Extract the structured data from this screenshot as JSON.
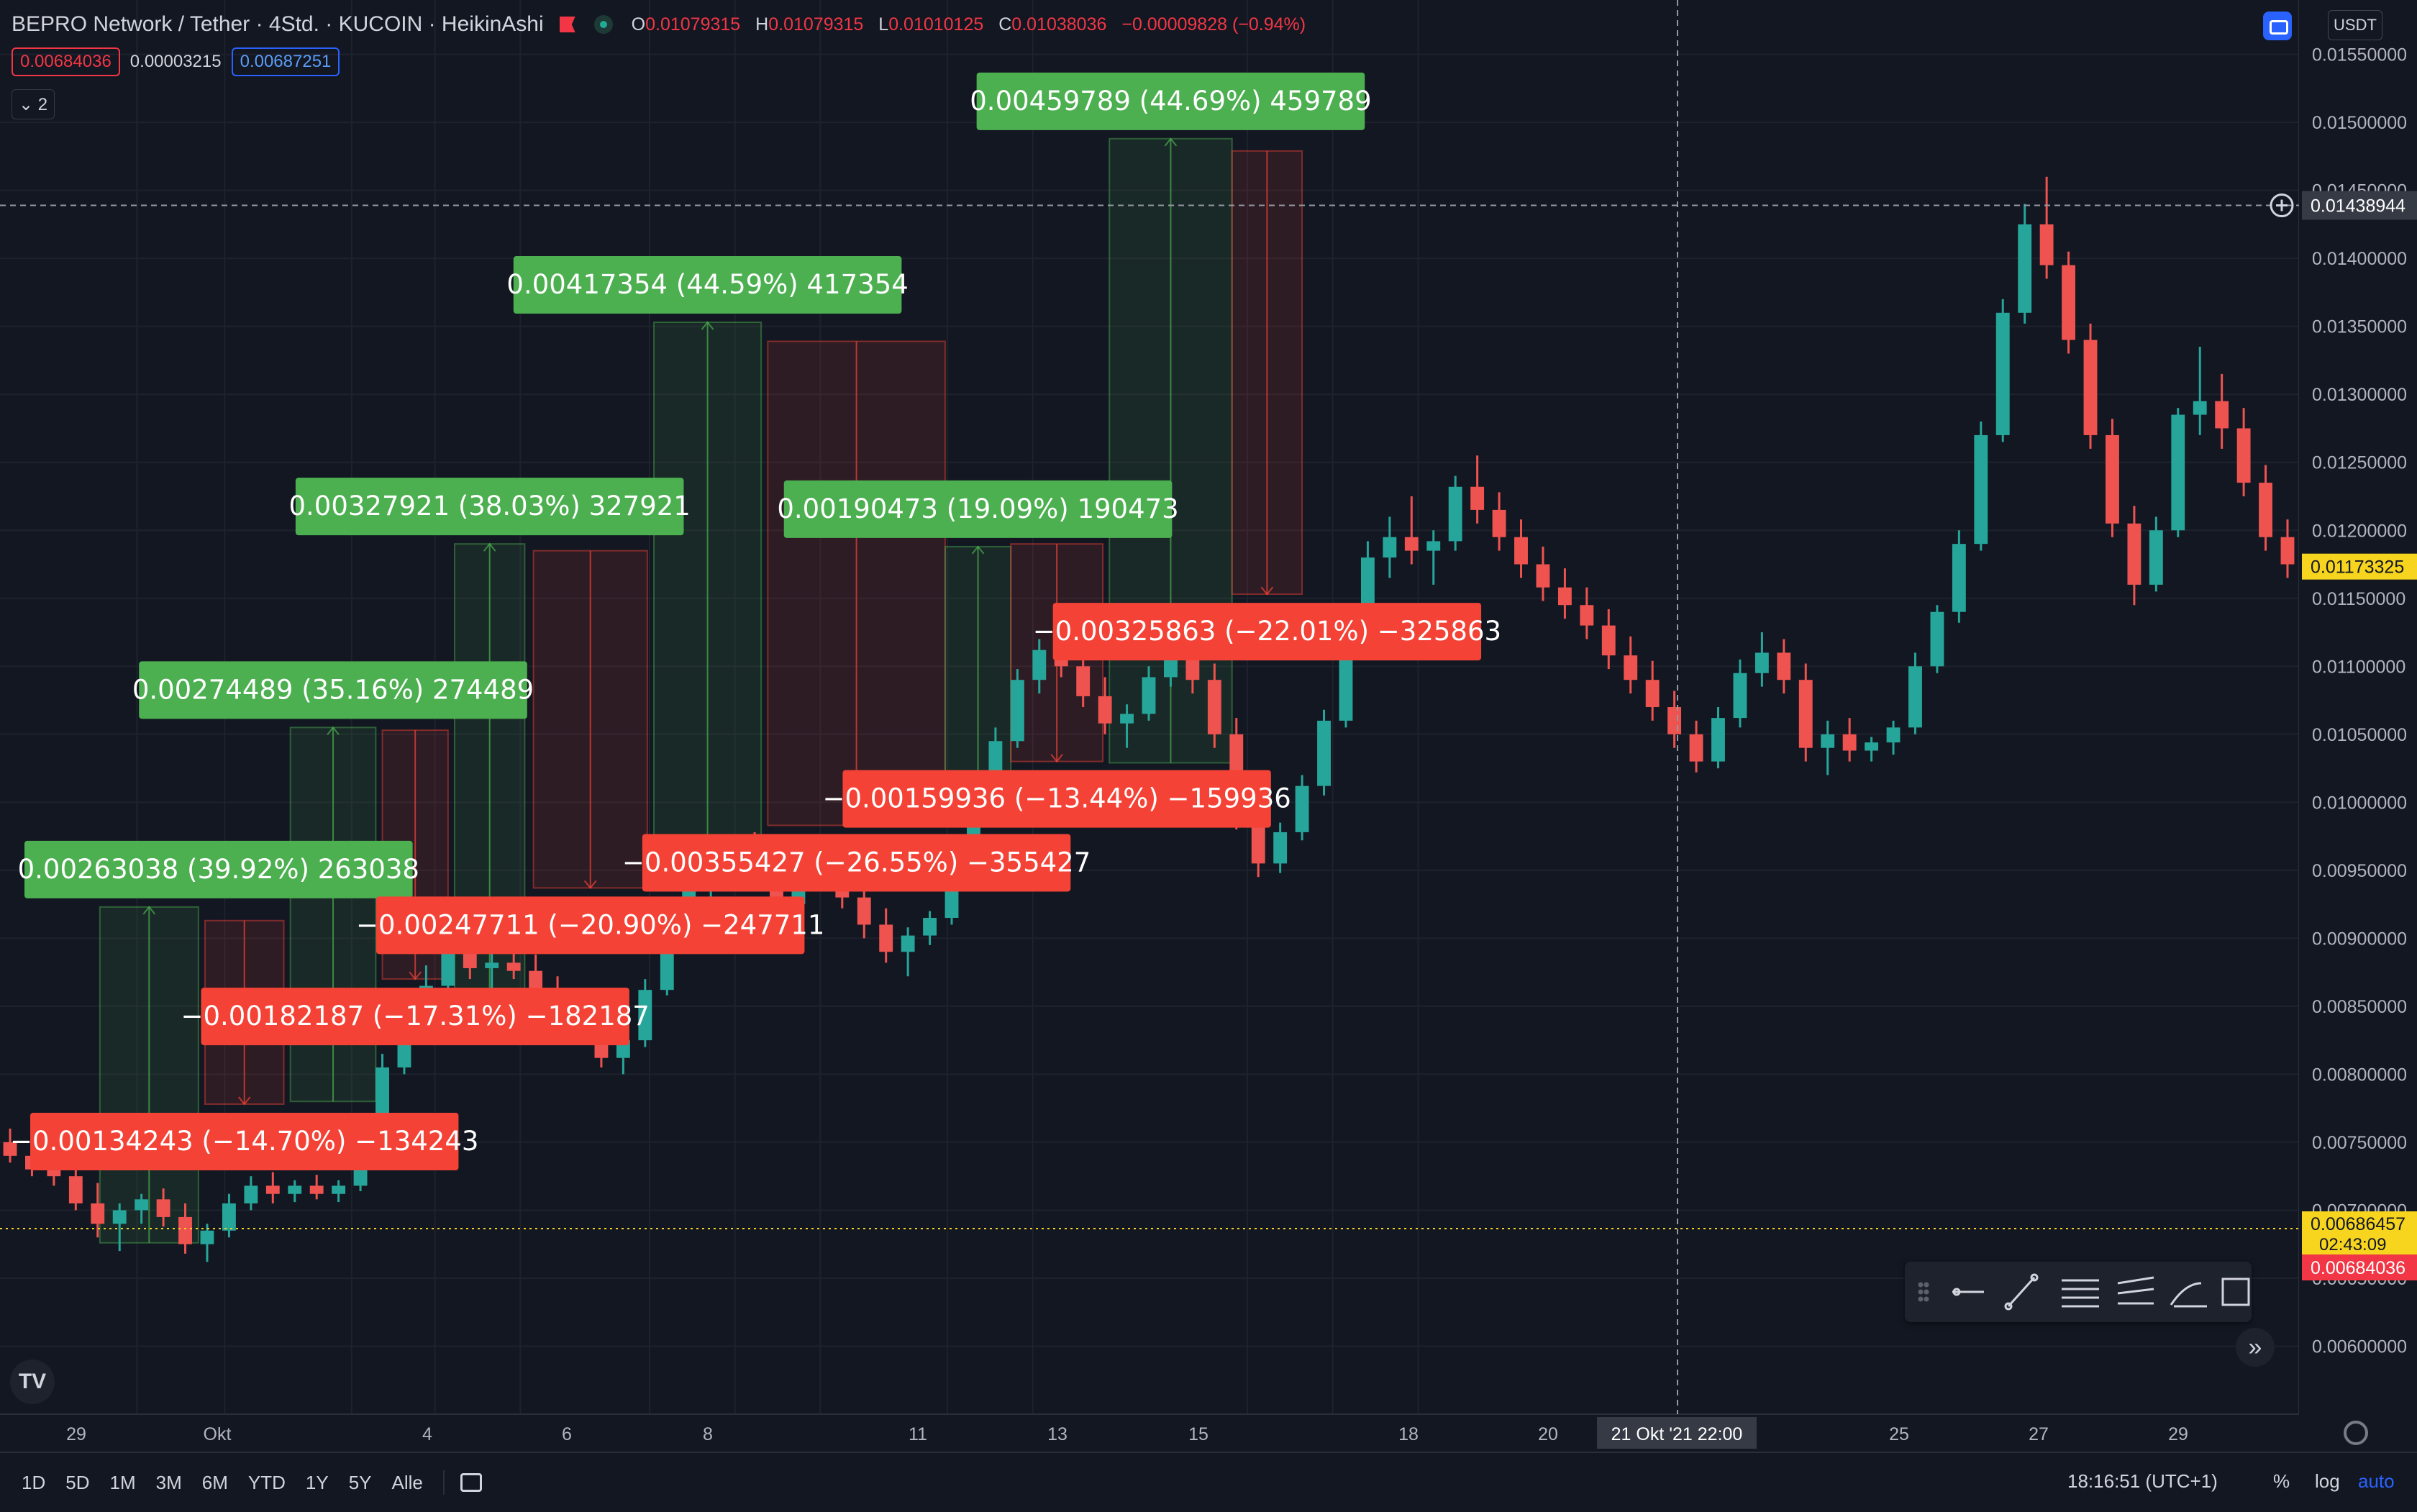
{
  "header": {
    "symbol": "BEPRO Network / Tether · 4Std. · KUCOIN · HeikinAshi",
    "open_label": "O",
    "open": "0.01079315",
    "high_label": "H",
    "high": "0.01079315",
    "low_label": "L",
    "low": "0.01010125",
    "close_label": "C",
    "close": "0.01038036",
    "change": "−0.00009828 (−0.94%)",
    "bid": "0.00684036",
    "spread": "0.00003215",
    "ask": "0.00687251",
    "indicators_toggle": "⌄ 2",
    "currency": "USDT"
  },
  "bottom_bar": {
    "timeframes": [
      "1D",
      "5D",
      "1M",
      "3M",
      "6M",
      "YTD",
      "1Y",
      "5Y",
      "Alle"
    ],
    "clock": "18:16:51 (UTC+1)",
    "percent": "%",
    "log": "log",
    "auto": "auto"
  },
  "colors": {
    "up": "#26a69a",
    "down": "#ef5350",
    "bg": "#131722",
    "grid": "#1e222d",
    "label_green": "#4caf50",
    "label_red": "#f44336",
    "crosshair_price": "#363a45",
    "last_price": "#f7d51e"
  },
  "chart_data": {
    "type": "candlestick",
    "title": "BEPRO Network / Tether · 4Std. · KUCOIN · HeikinAshi",
    "y_scale": "linear",
    "ylim": [
      0.0055,
      0.0159
    ],
    "y_ticks": [
      "0.00600000",
      "0.00650000",
      "0.00700000",
      "0.00750000",
      "0.00800000",
      "0.00850000",
      "0.00900000",
      "0.00950000",
      "0.01000000",
      "0.01050000",
      "0.01100000",
      "0.01150000",
      "0.01200000",
      "0.01250000",
      "0.01300000",
      "0.01350000",
      "0.01400000",
      "0.01450000",
      "0.01500000",
      "0.01550000"
    ],
    "x_ticks": [
      "29",
      "Okt",
      "4",
      "6",
      "8",
      "11",
      "13",
      "15",
      "18",
      "20",
      "25",
      "27",
      "29"
    ],
    "crosshair": {
      "price": "0.01438944",
      "time": "21 Okt '21   22:00"
    },
    "price_tags": [
      {
        "value": "0.01173325",
        "style": "yellow"
      },
      {
        "value": "0.00686457",
        "sub": "02:43:09",
        "style": "yellow"
      },
      {
        "value": "0.00684036",
        "style": "red"
      }
    ],
    "candles": [
      [
        0.0075,
        0.0076,
        0.00735,
        0.0074
      ],
      [
        0.0074,
        0.00748,
        0.00725,
        0.0073
      ],
      [
        0.0073,
        0.00738,
        0.00718,
        0.00725
      ],
      [
        0.00725,
        0.00732,
        0.007,
        0.00705
      ],
      [
        0.00705,
        0.0072,
        0.0068,
        0.0069
      ],
      [
        0.0069,
        0.00705,
        0.0067,
        0.007
      ],
      [
        0.007,
        0.00712,
        0.0069,
        0.00708
      ],
      [
        0.00708,
        0.00716,
        0.00688,
        0.00695
      ],
      [
        0.00695,
        0.00705,
        0.00668,
        0.00675
      ],
      [
        0.00675,
        0.0069,
        0.00662,
        0.00685
      ],
      [
        0.00685,
        0.00712,
        0.0068,
        0.00705
      ],
      [
        0.00705,
        0.00725,
        0.007,
        0.00718
      ],
      [
        0.00718,
        0.00728,
        0.00705,
        0.00712
      ],
      [
        0.00712,
        0.00722,
        0.00706,
        0.00718
      ],
      [
        0.00718,
        0.00726,
        0.00708,
        0.00712
      ],
      [
        0.00712,
        0.00722,
        0.00706,
        0.00718
      ],
      [
        0.00718,
        0.0077,
        0.00714,
        0.0076
      ],
      [
        0.0076,
        0.00815,
        0.00755,
        0.00805
      ],
      [
        0.00805,
        0.00845,
        0.008,
        0.00838
      ],
      [
        0.00838,
        0.0088,
        0.00832,
        0.00865
      ],
      [
        0.00865,
        0.00905,
        0.0086,
        0.0089
      ],
      [
        0.0089,
        0.0091,
        0.0087,
        0.00878
      ],
      [
        0.00878,
        0.00892,
        0.00862,
        0.00882
      ],
      [
        0.00882,
        0.00898,
        0.0087,
        0.00876
      ],
      [
        0.00876,
        0.00888,
        0.00852,
        0.0086
      ],
      [
        0.0086,
        0.00872,
        0.0084,
        0.00845
      ],
      [
        0.00845,
        0.00858,
        0.00825,
        0.0083
      ],
      [
        0.0083,
        0.00845,
        0.00805,
        0.00812
      ],
      [
        0.00812,
        0.0083,
        0.008,
        0.00825
      ],
      [
        0.00825,
        0.0087,
        0.0082,
        0.00862
      ],
      [
        0.00862,
        0.00912,
        0.00858,
        0.00905
      ],
      [
        0.00905,
        0.00945,
        0.009,
        0.00935
      ],
      [
        0.00935,
        0.00962,
        0.00925,
        0.00952
      ],
      [
        0.00952,
        0.00975,
        0.0094,
        0.00965
      ],
      [
        0.00965,
        0.00978,
        0.00935,
        0.00942
      ],
      [
        0.00942,
        0.00955,
        0.00915,
        0.00925
      ],
      [
        0.00925,
        0.00962,
        0.0092,
        0.00955
      ],
      [
        0.00955,
        0.00968,
        0.0094,
        0.00948
      ],
      [
        0.00948,
        0.00958,
        0.00922,
        0.0093
      ],
      [
        0.0093,
        0.00942,
        0.009,
        0.0091
      ],
      [
        0.0091,
        0.00922,
        0.00882,
        0.0089
      ],
      [
        0.0089,
        0.00908,
        0.00872,
        0.00902
      ],
      [
        0.00902,
        0.0092,
        0.00895,
        0.00915
      ],
      [
        0.00915,
        0.0096,
        0.0091,
        0.0095
      ],
      [
        0.0095,
        0.01005,
        0.00945,
        0.00995
      ],
      [
        0.00995,
        0.01055,
        0.0099,
        0.01045
      ],
      [
        0.01045,
        0.01098,
        0.0104,
        0.0109
      ],
      [
        0.0109,
        0.0112,
        0.0108,
        0.01112
      ],
      [
        0.01112,
        0.01125,
        0.01092,
        0.011
      ],
      [
        0.011,
        0.01112,
        0.0107,
        0.01078
      ],
      [
        0.01078,
        0.01092,
        0.0105,
        0.01058
      ],
      [
        0.01058,
        0.01072,
        0.0104,
        0.01065
      ],
      [
        0.01065,
        0.011,
        0.0106,
        0.01092
      ],
      [
        0.01092,
        0.0113,
        0.01085,
        0.0112
      ],
      [
        0.0112,
        0.0114,
        0.0108,
        0.0109
      ],
      [
        0.0109,
        0.01102,
        0.0104,
        0.0105
      ],
      [
        0.0105,
        0.01062,
        0.0098,
        0.0099
      ],
      [
        0.0099,
        0.01008,
        0.00945,
        0.00955
      ],
      [
        0.00955,
        0.00985,
        0.00948,
        0.00978
      ],
      [
        0.00978,
        0.0102,
        0.00972,
        0.01012
      ],
      [
        0.01012,
        0.01068,
        0.01005,
        0.0106
      ],
      [
        0.0106,
        0.0113,
        0.01055,
        0.01118
      ],
      [
        0.01118,
        0.01192,
        0.0111,
        0.0118
      ],
      [
        0.0118,
        0.0121,
        0.01165,
        0.01195
      ],
      [
        0.01195,
        0.01225,
        0.01175,
        0.01185
      ],
      [
        0.01185,
        0.012,
        0.0116,
        0.01192
      ],
      [
        0.01192,
        0.0124,
        0.01185,
        0.01232
      ],
      [
        0.01232,
        0.01255,
        0.01205,
        0.01215
      ],
      [
        0.01215,
        0.01228,
        0.01185,
        0.01195
      ],
      [
        0.01195,
        0.01208,
        0.01165,
        0.01175
      ],
      [
        0.01175,
        0.01188,
        0.01148,
        0.01158
      ],
      [
        0.01158,
        0.01172,
        0.01135,
        0.01145
      ],
      [
        0.01145,
        0.01158,
        0.0112,
        0.0113
      ],
      [
        0.0113,
        0.01142,
        0.01098,
        0.01108
      ],
      [
        0.01108,
        0.01122,
        0.0108,
        0.0109
      ],
      [
        0.0109,
        0.01104,
        0.0106,
        0.0107
      ],
      [
        0.0107,
        0.01082,
        0.0104,
        0.0105
      ],
      [
        0.0105,
        0.0106,
        0.01022,
        0.0103
      ],
      [
        0.0103,
        0.0107,
        0.01025,
        0.01062
      ],
      [
        0.01062,
        0.01105,
        0.01055,
        0.01095
      ],
      [
        0.01095,
        0.01125,
        0.01085,
        0.0111
      ],
      [
        0.0111,
        0.0112,
        0.0108,
        0.0109
      ],
      [
        0.0109,
        0.01102,
        0.0103,
        0.0104
      ],
      [
        0.0104,
        0.0106,
        0.0102,
        0.0105
      ],
      [
        0.0105,
        0.01062,
        0.0103,
        0.01038
      ],
      [
        0.01038,
        0.01048,
        0.0103,
        0.01044
      ],
      [
        0.01044,
        0.0106,
        0.01035,
        0.01055
      ],
      [
        0.01055,
        0.0111,
        0.0105,
        0.011
      ],
      [
        0.011,
        0.01145,
        0.01095,
        0.0114
      ],
      [
        0.0114,
        0.012,
        0.01132,
        0.0119
      ],
      [
        0.0119,
        0.0128,
        0.01185,
        0.0127
      ],
      [
        0.0127,
        0.0137,
        0.01265,
        0.0136
      ],
      [
        0.0136,
        0.0144,
        0.01352,
        0.01425
      ],
      [
        0.01425,
        0.0146,
        0.01385,
        0.01395
      ],
      [
        0.01395,
        0.01405,
        0.0133,
        0.0134
      ],
      [
        0.0134,
        0.01352,
        0.0126,
        0.0127
      ],
      [
        0.0127,
        0.01282,
        0.01195,
        0.01205
      ],
      [
        0.01205,
        0.01218,
        0.01145,
        0.0116
      ],
      [
        0.0116,
        0.0121,
        0.01155,
        0.012
      ],
      [
        0.012,
        0.0129,
        0.01195,
        0.01285
      ],
      [
        0.01285,
        0.01335,
        0.0127,
        0.01295
      ],
      [
        0.01295,
        0.01315,
        0.0126,
        0.01275
      ],
      [
        0.01275,
        0.0129,
        0.01225,
        0.01235
      ],
      [
        0.01235,
        0.01248,
        0.01185,
        0.01195
      ],
      [
        0.01195,
        0.01208,
        0.01165,
        0.01175
      ]
    ],
    "measurements": [
      {
        "label": "0.00263038 (39.92%) 263038",
        "dir": "up",
        "start": 4.1,
        "end": 8.6,
        "from": 0.00676,
        "to": 0.00923
      },
      {
        "label": "−0.00134243 (−14.70%) −134243",
        "dir": "down",
        "start": 8.9,
        "end": 12.5,
        "from": 0.00913,
        "to": 0.00778
      },
      {
        "label": "0.00274489 (35.16%) 274489",
        "dir": "up",
        "start": 12.8,
        "end": 16.7,
        "from": 0.0078,
        "to": 0.01055
      },
      {
        "label": "−0.00182187 (−17.31%) −182187",
        "dir": "down",
        "start": 17.0,
        "end": 20.0,
        "from": 0.01053,
        "to": 0.0087
      },
      {
        "label": "0.00327921 (38.03%) 327921",
        "dir": "up",
        "start": 20.3,
        "end": 23.5,
        "from": 0.00861,
        "to": 0.0119
      },
      {
        "label": "−0.00247711 (−20.90%) −247711",
        "dir": "down",
        "start": 23.9,
        "end": 29.1,
        "from": 0.01185,
        "to": 0.00937
      },
      {
        "label": "0.00417354 (44.59%) 417354",
        "dir": "up",
        "start": 29.4,
        "end": 34.3,
        "from": 0.00936,
        "to": 0.01353
      },
      {
        "label": "−0.00355427 (−26.55%) −355427",
        "dir": "down",
        "start": 34.6,
        "end": 42.7,
        "from": 0.01339,
        "to": 0.00983
      },
      {
        "label": "0.00190473 (19.09%) 190473",
        "dir": "up",
        "start": 42.7,
        "end": 45.7,
        "from": 0.00998,
        "to": 0.01188
      },
      {
        "label": "−0.00159936 (−13.44%) −159936",
        "dir": "down",
        "start": 45.7,
        "end": 49.9,
        "from": 0.0119,
        "to": 0.0103
      },
      {
        "label": "0.00459789 (44.69%) 459789",
        "dir": "up",
        "start": 50.2,
        "end": 55.8,
        "from": 0.01029,
        "to": 0.01488
      },
      {
        "label": "−0.00325863 (−22.01%) −325863",
        "dir": "down",
        "start": 55.8,
        "end": 59.0,
        "from": 0.01479,
        "to": 0.01153
      }
    ]
  }
}
